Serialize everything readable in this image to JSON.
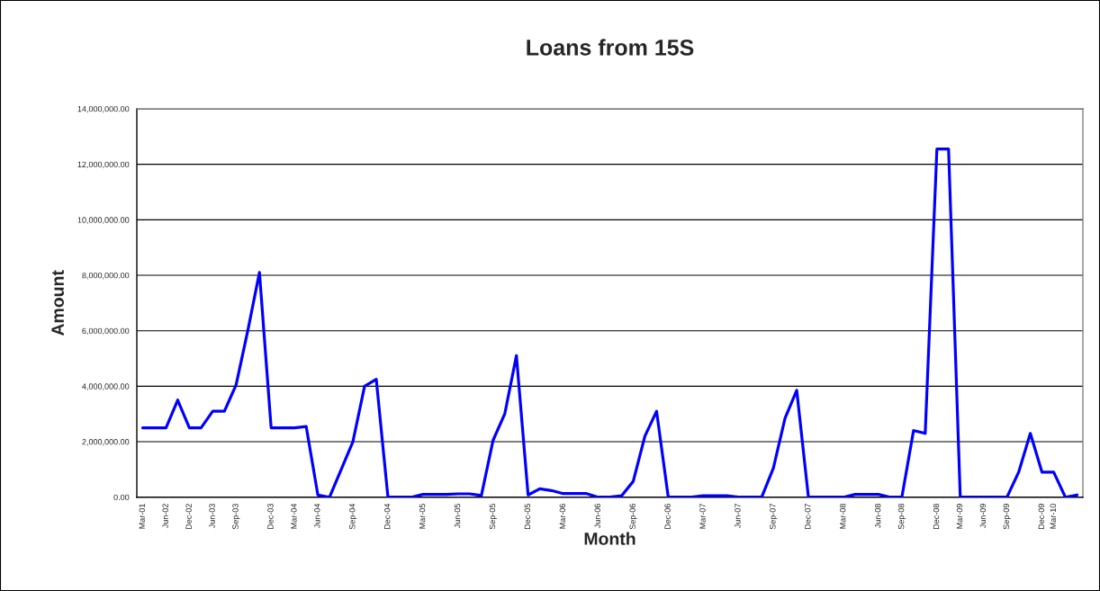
{
  "chart_data": {
    "type": "line",
    "title": "Loans from 15S",
    "xlabel": "Month",
    "ylabel": "Amount",
    "categories": [
      "Mar-01",
      null,
      "Jun-02",
      null,
      "Dec-02",
      null,
      "Jun-03",
      null,
      "Sep-03",
      null,
      null,
      "Dec-03",
      null,
      "Mar-04",
      null,
      "Jun-04",
      null,
      null,
      "Sep-04",
      null,
      null,
      "Dec-04",
      null,
      null,
      "Mar-05",
      null,
      null,
      "Jun-05",
      null,
      null,
      "Sep-05",
      null,
      null,
      "Dec-05",
      null,
      null,
      "Mar-06",
      null,
      null,
      "Jun-06",
      null,
      null,
      "Sep-06",
      null,
      null,
      "Dec-06",
      null,
      null,
      "Mar-07",
      null,
      null,
      "Jun-07",
      null,
      null,
      "Sep-07",
      null,
      null,
      "Dec-07",
      null,
      null,
      "Mar-08",
      null,
      null,
      "Jun-08",
      null,
      "Sep-08",
      null,
      null,
      "Dec-08",
      null,
      "Mar-09",
      null,
      "Jun-09",
      null,
      "Sep-09",
      null,
      null,
      "Dec-09",
      "Mar-10",
      null,
      null
    ],
    "series": [
      {
        "color": "#0000ff",
        "values": [
          2500000,
          2500000,
          2500000,
          3500000,
          2500000,
          2500000,
          3100000,
          3100000,
          4050000,
          6000000,
          8100000,
          2500000,
          2500000,
          2500000,
          2550000,
          80000,
          0,
          1000000,
          2000000,
          4000000,
          4250000,
          0,
          0,
          0,
          100000,
          100000,
          100000,
          120000,
          120000,
          60000,
          2050000,
          3000000,
          5100000,
          80000,
          300000,
          240000,
          130000,
          130000,
          130000,
          0,
          0,
          50000,
          570000,
          2200000,
          3100000,
          0,
          0,
          0,
          50000,
          50000,
          50000,
          0,
          0,
          0,
          1050000,
          2850000,
          3850000,
          0,
          0,
          0,
          0,
          100000,
          100000,
          100000,
          0,
          0,
          2400000,
          2300000,
          12550000,
          12550000,
          0,
          0,
          0,
          0,
          0,
          900000,
          2300000,
          900000,
          900000,
          0,
          80000
        ]
      }
    ],
    "ylim": [
      0,
      14000000
    ],
    "yticks": [
      {
        "value": 0,
        "label": "0.00"
      },
      {
        "value": 2000000,
        "label": "2,000,000.00"
      },
      {
        "value": 4000000,
        "label": "4,000,000.00"
      },
      {
        "value": 6000000,
        "label": "6,000,000.00"
      },
      {
        "value": 8000000,
        "label": "8,000,000.00"
      },
      {
        "value": 10000000,
        "label": "10,000,000.00"
      },
      {
        "value": 12000000,
        "label": "12,000,000.00"
      },
      {
        "value": 14000000,
        "label": "14,000,000.00"
      }
    ],
    "grid": "y",
    "marker": "none",
    "line_style": "solid"
  }
}
